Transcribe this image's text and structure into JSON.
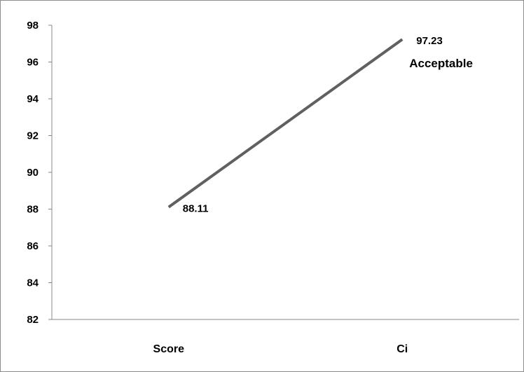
{
  "chart_data": {
    "type": "line",
    "title": "",
    "xlabel": "",
    "ylabel": "",
    "categories": [
      "Score",
      "Ci"
    ],
    "series": [
      {
        "values": [
          88.11,
          97.23
        ],
        "color": "#606060"
      }
    ],
    "data_labels": [
      "88.11",
      "97.23"
    ],
    "annotations": [
      "Acceptable"
    ],
    "ylim": [
      82,
      98
    ],
    "yticks": [
      82,
      84,
      86,
      88,
      90,
      92,
      94,
      96,
      98
    ],
    "grid": false,
    "legend": "none"
  }
}
